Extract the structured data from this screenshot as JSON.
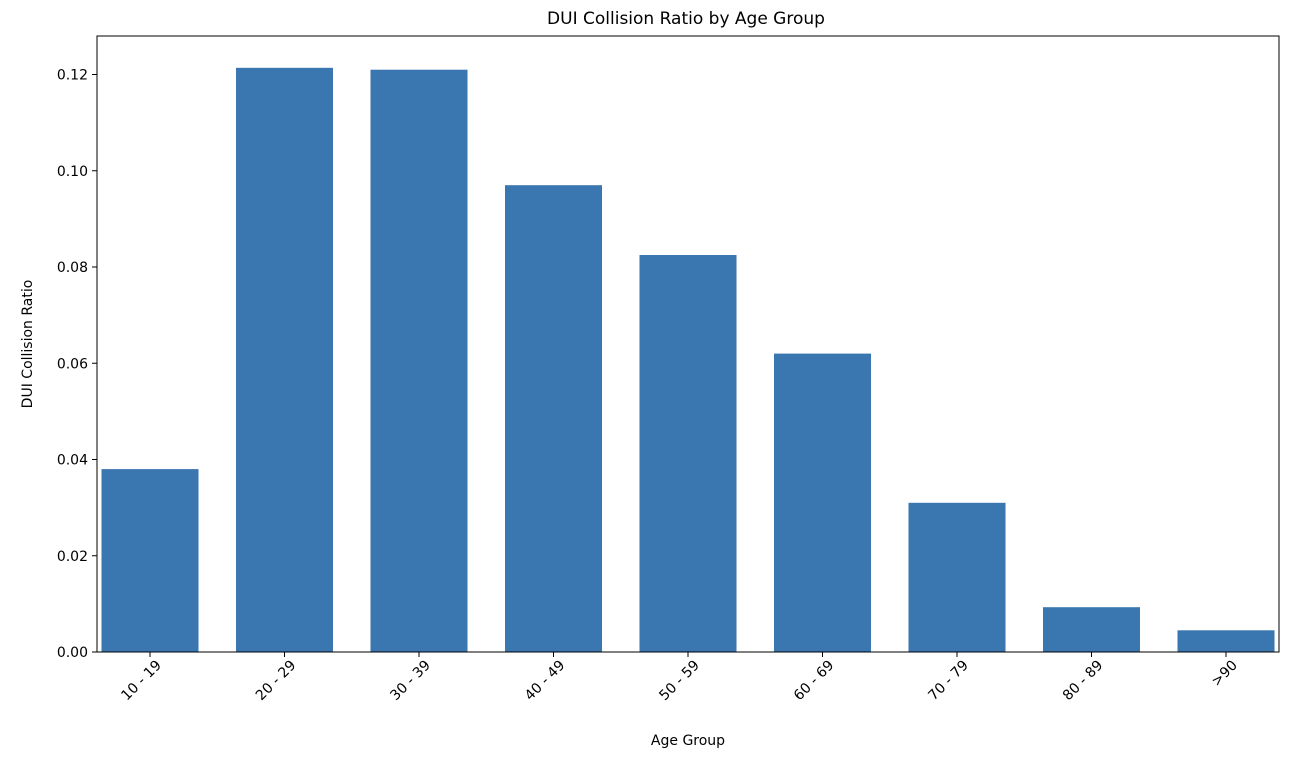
{
  "chart_data": {
    "type": "bar",
    "title": "DUI Collision Ratio by Age Group",
    "xlabel": "Age Group",
    "ylabel": "DUI Collision Ratio",
    "categories": [
      "10 - 19",
      "20 - 29",
      "30 - 39",
      "40 - 49",
      "50 - 59",
      "60 - 69",
      "70 - 79",
      "80 - 89",
      ">90"
    ],
    "values": [
      0.038,
      0.1214,
      0.121,
      0.097,
      0.0825,
      0.062,
      0.031,
      0.0093,
      0.0045
    ],
    "ylim": [
      0,
      0.128
    ],
    "yticks": [
      0.0,
      0.02,
      0.04,
      0.06,
      0.08,
      0.1,
      0.12
    ],
    "ytick_labels": [
      "0.00",
      "0.02",
      "0.04",
      "0.06",
      "0.08",
      "0.10",
      "0.12"
    ],
    "grid": false,
    "colors": {
      "bar": "#3a76af",
      "axis": "#000000"
    }
  }
}
